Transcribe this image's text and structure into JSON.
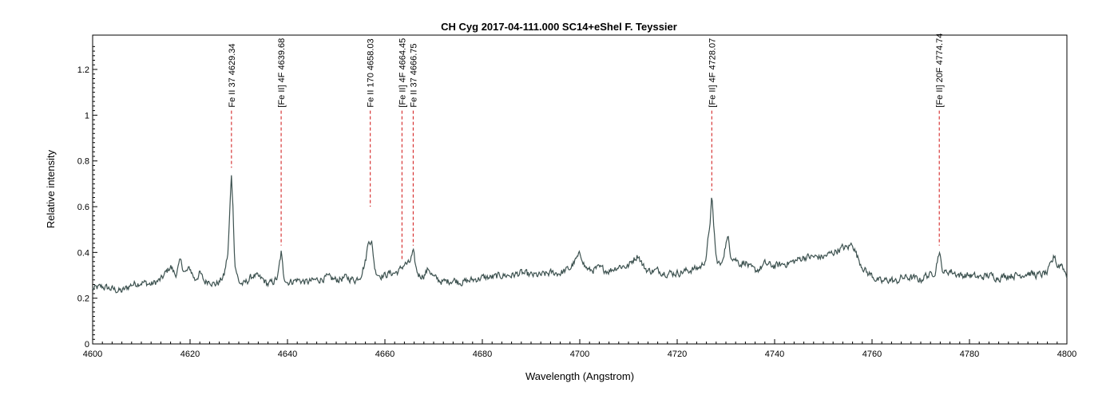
{
  "chart_data": {
    "type": "line",
    "title": "CH Cyg  2017-04-111.000  SC14+eShel F. Teyssier",
    "xlabel": "Wavelength (Angstrom)",
    "ylabel": "Relative intensity",
    "xlim": [
      4600,
      4800
    ],
    "ylim": [
      0,
      1.35
    ],
    "x_ticks": [
      4600,
      4620,
      4640,
      4660,
      4680,
      4700,
      4720,
      4740,
      4760,
      4780,
      4800
    ],
    "x_tick_labels": [
      "4600",
      "4620",
      "4640",
      "4660",
      "4680",
      "4700",
      "4720",
      "4740",
      "4760",
      "4780",
      "4800"
    ],
    "y_ticks": [
      0,
      0.2,
      0.4,
      0.6,
      0.8,
      1,
      1.2
    ],
    "y_tick_labels": [
      "0",
      "0.2",
      "0.4",
      "0.6",
      "0.8",
      "1",
      "1.2"
    ],
    "grid": false,
    "line_color": "#3d5250",
    "marker_color": "#d01010",
    "series": [
      {
        "points": [
          [
            4600,
            0.24
          ],
          [
            4602,
            0.25
          ],
          [
            4604,
            0.24
          ],
          [
            4606,
            0.23
          ],
          [
            4608,
            0.26
          ],
          [
            4610,
            0.27
          ],
          [
            4612,
            0.26
          ],
          [
            4614,
            0.28
          ],
          [
            4615,
            0.31
          ],
          [
            4616,
            0.34
          ],
          [
            4617,
            0.3
          ],
          [
            4618,
            0.36
          ],
          [
            4619,
            0.31
          ],
          [
            4620,
            0.33
          ],
          [
            4621,
            0.28
          ],
          [
            4622,
            0.31
          ],
          [
            4623,
            0.27
          ],
          [
            4624,
            0.28
          ],
          [
            4625,
            0.26
          ],
          [
            4626,
            0.27
          ],
          [
            4627,
            0.3
          ],
          [
            4627.8,
            0.4
          ],
          [
            4628.2,
            0.6
          ],
          [
            4628.5,
            0.74
          ],
          [
            4628.8,
            0.6
          ],
          [
            4629.2,
            0.35
          ],
          [
            4630,
            0.27
          ],
          [
            4631,
            0.26
          ],
          [
            4632,
            0.28
          ],
          [
            4633,
            0.3
          ],
          [
            4634,
            0.29
          ],
          [
            4635,
            0.28
          ],
          [
            4636,
            0.26
          ],
          [
            4637,
            0.27
          ],
          [
            4638,
            0.29
          ],
          [
            4638.7,
            0.4
          ],
          [
            4639.2,
            0.3
          ],
          [
            4640,
            0.27
          ],
          [
            4642,
            0.28
          ],
          [
            4644,
            0.27
          ],
          [
            4646,
            0.28
          ],
          [
            4648,
            0.29
          ],
          [
            4650,
            0.28
          ],
          [
            4652,
            0.29
          ],
          [
            4654,
            0.28
          ],
          [
            4655,
            0.3
          ],
          [
            4656,
            0.36
          ],
          [
            4656.7,
            0.46
          ],
          [
            4657.3,
            0.44
          ],
          [
            4658,
            0.32
          ],
          [
            4659,
            0.3
          ],
          [
            4660,
            0.3
          ],
          [
            4661,
            0.31
          ],
          [
            4662,
            0.31
          ],
          [
            4663,
            0.32
          ],
          [
            4664,
            0.35
          ],
          [
            4665,
            0.35
          ],
          [
            4665.8,
            0.4
          ],
          [
            4666.5,
            0.32
          ],
          [
            4667,
            0.3
          ],
          [
            4668,
            0.3
          ],
          [
            4669,
            0.33
          ],
          [
            4670,
            0.29
          ],
          [
            4672,
            0.27
          ],
          [
            4674,
            0.28
          ],
          [
            4676,
            0.27
          ],
          [
            4678,
            0.28
          ],
          [
            4680,
            0.29
          ],
          [
            4682,
            0.29
          ],
          [
            4684,
            0.3
          ],
          [
            4686,
            0.3
          ],
          [
            4688,
            0.31
          ],
          [
            4690,
            0.3
          ],
          [
            4692,
            0.3
          ],
          [
            4694,
            0.31
          ],
          [
            4696,
            0.31
          ],
          [
            4698,
            0.33
          ],
          [
            4700,
            0.39
          ],
          [
            4700.5,
            0.38
          ],
          [
            4701,
            0.34
          ],
          [
            4702,
            0.32
          ],
          [
            4704,
            0.33
          ],
          [
            4706,
            0.32
          ],
          [
            4708,
            0.34
          ],
          [
            4710,
            0.34
          ],
          [
            4711,
            0.37
          ],
          [
            4712,
            0.39
          ],
          [
            4713,
            0.34
          ],
          [
            4714,
            0.32
          ],
          [
            4716,
            0.32
          ],
          [
            4718,
            0.31
          ],
          [
            4720,
            0.31
          ],
          [
            4722,
            0.32
          ],
          [
            4724,
            0.33
          ],
          [
            4725,
            0.34
          ],
          [
            4726,
            0.38
          ],
          [
            4726.8,
            0.55
          ],
          [
            4727.1,
            0.64
          ],
          [
            4727.4,
            0.55
          ],
          [
            4728,
            0.37
          ],
          [
            4729,
            0.34
          ],
          [
            4730,
            0.44
          ],
          [
            4730.5,
            0.46
          ],
          [
            4731,
            0.39
          ],
          [
            4732,
            0.37
          ],
          [
            4733,
            0.35
          ],
          [
            4734,
            0.36
          ],
          [
            4735,
            0.33
          ],
          [
            4736,
            0.32
          ],
          [
            4737,
            0.33
          ],
          [
            4738,
            0.35
          ],
          [
            4740,
            0.34
          ],
          [
            4742,
            0.35
          ],
          [
            4744,
            0.36
          ],
          [
            4745,
            0.37
          ],
          [
            4746,
            0.38
          ],
          [
            4748,
            0.38
          ],
          [
            4750,
            0.38
          ],
          [
            4752,
            0.4
          ],
          [
            4753,
            0.41
          ],
          [
            4754,
            0.42
          ],
          [
            4755,
            0.42
          ],
          [
            4756,
            0.44
          ],
          [
            4757,
            0.38
          ],
          [
            4758,
            0.34
          ],
          [
            4759,
            0.31
          ],
          [
            4760,
            0.3
          ],
          [
            4761,
            0.28
          ],
          [
            4762,
            0.27
          ],
          [
            4763,
            0.28
          ],
          [
            4764,
            0.28
          ],
          [
            4765,
            0.27
          ],
          [
            4766,
            0.29
          ],
          [
            4768,
            0.29
          ],
          [
            4770,
            0.28
          ],
          [
            4771,
            0.3
          ],
          [
            4772,
            0.3
          ],
          [
            4773,
            0.32
          ],
          [
            4773.8,
            0.41
          ],
          [
            4774.3,
            0.33
          ],
          [
            4775,
            0.31
          ],
          [
            4776,
            0.32
          ],
          [
            4778,
            0.3
          ],
          [
            4780,
            0.3
          ],
          [
            4782,
            0.29
          ],
          [
            4784,
            0.3
          ],
          [
            4786,
            0.29
          ],
          [
            4788,
            0.3
          ],
          [
            4790,
            0.3
          ],
          [
            4792,
            0.31
          ],
          [
            4794,
            0.3
          ],
          [
            4796,
            0.31
          ],
          [
            4797,
            0.36
          ],
          [
            4797.5,
            0.39
          ],
          [
            4798,
            0.34
          ],
          [
            4799,
            0.35
          ],
          [
            4799.5,
            0.32
          ],
          [
            4800,
            0.3
          ]
        ]
      }
    ],
    "annotations": [
      {
        "label": "Fe II 37 4629.34",
        "x": 4628.5,
        "y_line_bottom": 0.77
      },
      {
        "label": "[Fe II] 4F 4639.68",
        "x": 4638.7,
        "y_line_bottom": 0.43
      },
      {
        "label": "Fe II 170 4658.03",
        "x": 4657.0,
        "y_line_bottom": 0.6
      },
      {
        "label": "[Fe II] 4F 4664.45",
        "x": 4663.5,
        "y_line_bottom": 0.37
      },
      {
        "label": "Fe II 37 4666.75",
        "x": 4665.8,
        "y_line_bottom": 0.43
      },
      {
        "label": "[Fe II] 4F 4728.07",
        "x": 4727.1,
        "y_line_bottom": 0.67
      },
      {
        "label": "[Fe II] 20F 4774.74",
        "x": 4773.8,
        "y_line_bottom": 0.43
      }
    ]
  }
}
